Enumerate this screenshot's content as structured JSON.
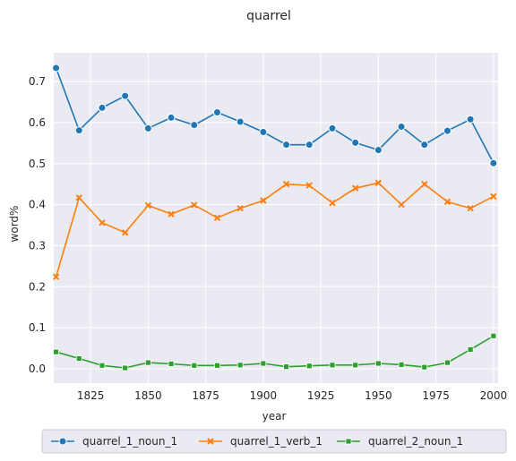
{
  "chart_data": {
    "type": "line",
    "title": "quarrel",
    "xlabel": "year",
    "ylabel": "word%",
    "xlim": [
      1809,
      2002
    ],
    "ylim": [
      -0.035,
      0.77
    ],
    "xticks": [
      1825,
      1850,
      1875,
      1900,
      1925,
      1950,
      1975,
      2000
    ],
    "yticks": [
      0.0,
      0.1,
      0.2,
      0.3,
      0.4,
      0.5,
      0.6,
      0.7
    ],
    "grid": true,
    "legend_position": "bottom",
    "x": [
      1810,
      1820,
      1830,
      1840,
      1850,
      1860,
      1870,
      1880,
      1890,
      1900,
      1910,
      1920,
      1930,
      1940,
      1950,
      1960,
      1970,
      1980,
      1990,
      2000
    ],
    "series": [
      {
        "name": "quarrel_1_noun_1",
        "color": "#1f77b4",
        "marker": "circle",
        "values": [
          0.733,
          0.581,
          0.636,
          0.665,
          0.586,
          0.612,
          0.594,
          0.625,
          0.602,
          0.577,
          0.546,
          0.546,
          0.586,
          0.551,
          0.533,
          0.59,
          0.546,
          0.58,
          0.608,
          0.501
        ]
      },
      {
        "name": "quarrel_1_verb_1",
        "color": "#ff7f0e",
        "marker": "x",
        "values": [
          0.224,
          0.417,
          0.356,
          0.332,
          0.398,
          0.377,
          0.399,
          0.368,
          0.391,
          0.41,
          0.45,
          0.447,
          0.404,
          0.44,
          0.453,
          0.4,
          0.45,
          0.407,
          0.391,
          0.42
        ]
      },
      {
        "name": "quarrel_2_noun_1",
        "color": "#2ca02c",
        "marker": "square",
        "values": [
          0.041,
          0.025,
          0.008,
          0.002,
          0.015,
          0.012,
          0.008,
          0.008,
          0.009,
          0.013,
          0.005,
          0.007,
          0.009,
          0.009,
          0.013,
          0.01,
          0.004,
          0.015,
          0.047,
          0.08
        ]
      }
    ]
  }
}
